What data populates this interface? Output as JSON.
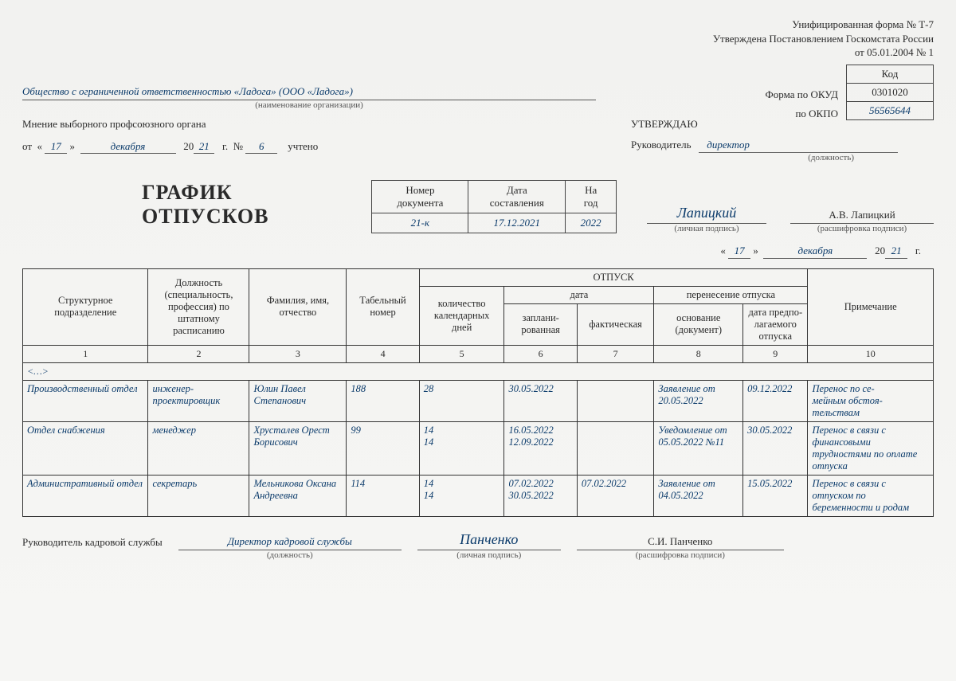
{
  "header": {
    "form_line1": "Унифицированная форма № Т-7",
    "form_line2": "Утверждена Постановлением Госкомстата России",
    "form_line3": "от 05.01.2004 № 1",
    "kod_label": "Код",
    "okud_label": "Форма по ОКУД",
    "okud_code": "0301020",
    "okpo_label": "по ОКПО",
    "okpo_code": "56565644"
  },
  "org": {
    "name": "Общество с ограниченной ответственностью «Ладога» (ООО «Ладога»)",
    "sublabel": "(наименование организации)"
  },
  "opinion": {
    "title": "Мнение выборного профсоюзного органа",
    "from": "от",
    "day": "17",
    "month": "декабря",
    "year_prefix": "20",
    "year": "21",
    "year_suffix": "г.",
    "num_label": "№",
    "num": "6",
    "accounted": "учтено"
  },
  "approve": {
    "title": "УТВЕРЖДАЮ",
    "leader_label": "Руководитель",
    "position": "директор",
    "position_sub": "(должность)",
    "signature": "Лапицкий",
    "signature_sub": "(личная подпись)",
    "decipher": "А.В. Лапицкий",
    "decipher_sub": "(расшифровка подписи)"
  },
  "docnum": {
    "title": "ГРАФИК ОТПУСКОВ",
    "col1": "Номер документа",
    "col2": "Дата составления",
    "col3": "На год",
    "val1": "21-к",
    "val2": "17.12.2021",
    "val3": "2022"
  },
  "date_right": {
    "day": "17",
    "month": "декабря",
    "year_prefix": "20",
    "year": "21",
    "year_suffix": "г."
  },
  "table": {
    "h_dept": "Структурное подразделение",
    "h_position": "Должность (специальность, профессия) по штатному расписанию",
    "h_name": "Фамилия, имя, отчество",
    "h_tabnum": "Табельный номер",
    "h_vacation": "ОТПУСК",
    "h_days": "количество календарных дней",
    "h_date": "дата",
    "h_planned": "заплани-\nрованная",
    "h_actual": "фактическая",
    "h_transfer": "перенесение отпуска",
    "h_basis": "основание (документ)",
    "h_expected": "дата предпо-\nлагаемого отпуска",
    "h_note": "Примечание",
    "dots": "<…>",
    "rows": [
      {
        "dept": "Производственный отдел",
        "position": "инженер-проектировщик",
        "name": "Юлин Павел Степанович",
        "tabnum": "188",
        "days": "28",
        "planned": "30.05.2022",
        "actual": "",
        "basis": "Заявление от 20.05.2022",
        "expected": "09.12.2022",
        "note": "Перенос по се-\nмейным обстоя-\nтельствам"
      },
      {
        "dept": "Отдел снабжения",
        "position": "менеджер",
        "name": "Хрусталев Орест Борисович",
        "tabnum": "99",
        "days": "14\n14",
        "planned": "16.05.2022\n12.09.2022",
        "actual": "",
        "basis": "Уведомление от 05.05.2022 №11",
        "expected": "30.05.2022",
        "note": "Перенос в связи с финансовыми трудностями по оплате отпуска"
      },
      {
        "dept": "Административный отдел",
        "position": "секретарь",
        "name": "Мельникова Оксана Андреевна",
        "tabnum": "114",
        "days": "14\n14",
        "planned": "07.02.2022\n30.05.2022",
        "actual": "07.02.2022",
        "basis": "Заявление от 04.05.2022",
        "expected": "15.05.2022",
        "note": "Перенос в связи с отпуском по беременности и родам"
      }
    ]
  },
  "footer": {
    "label": "Руководитель кадровой службы",
    "position": "Директор кадровой службы",
    "position_sub": "(должность)",
    "signature": "Панченко",
    "signature_sub": "(личная подпись)",
    "decipher": "С.И. Панченко",
    "decipher_sub": "(расшифровка подписи)"
  }
}
